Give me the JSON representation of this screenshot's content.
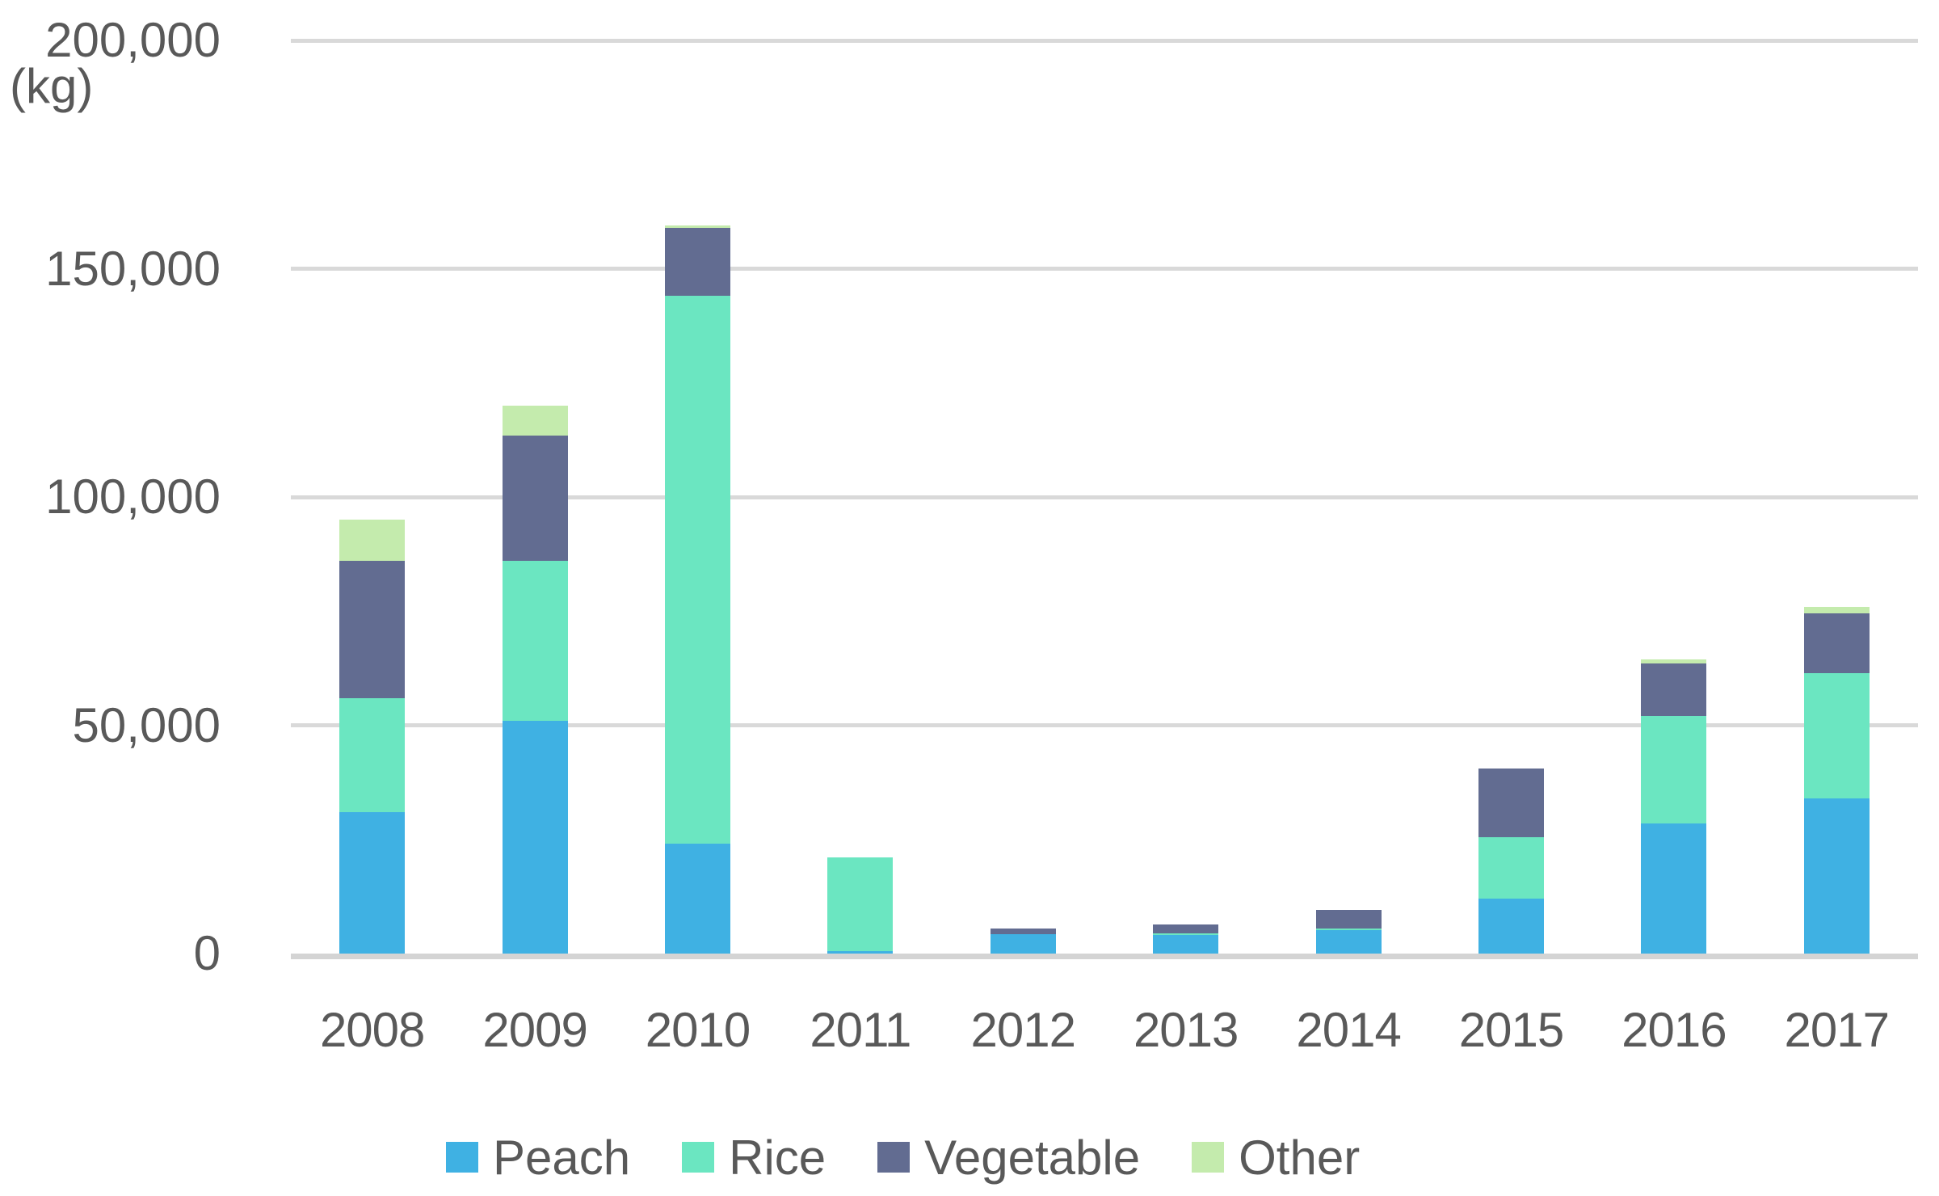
{
  "chart_data": {
    "type": "bar",
    "stacked": true,
    "title": "",
    "unit_label": "(kg)",
    "xlabel": "",
    "ylabel": "(kg)",
    "categories": [
      "2008",
      "2009",
      "2010",
      "2011",
      "2012",
      "2013",
      "2014",
      "2015",
      "2016",
      "2017"
    ],
    "series": [
      {
        "name": "Peach",
        "color": "#3fb1e3",
        "values": [
          31000,
          51000,
          24000,
          500,
          4300,
          4100,
          5100,
          12000,
          28500,
          34000
        ]
      },
      {
        "name": "Rice",
        "color": "#6be6c1",
        "values": [
          25000,
          35000,
          120000,
          20500,
          0,
          300,
          300,
          13500,
          23500,
          27500
        ]
      },
      {
        "name": "Vegetable",
        "color": "#626c91",
        "values": [
          30000,
          27500,
          15000,
          0,
          1100,
          2000,
          4100,
          15000,
          11500,
          13000
        ]
      },
      {
        "name": "Other",
        "color": "#c4ebad",
        "values": [
          9000,
          6500,
          400,
          0,
          0,
          0,
          0,
          0,
          1000,
          1500
        ]
      }
    ],
    "totals": [
      95000,
      120000,
      159400,
      21000,
      5400,
      6400,
      9500,
      40500,
      64500,
      76000
    ],
    "ylim": [
      0,
      200000
    ],
    "ytick_interval": 50000,
    "yticks": [
      {
        "value": 0,
        "label": "0"
      },
      {
        "value": 50000,
        "label": "50,000"
      },
      {
        "value": 100000,
        "label": "100,000"
      },
      {
        "value": 150000,
        "label": "150,000"
      },
      {
        "value": 200000,
        "label": "200,000"
      }
    ],
    "grid": "horizontal",
    "legend_position": "bottom",
    "colors": {
      "gridline": "#d9d9d9",
      "baseline": "#d4d4d4",
      "text": "#595959",
      "background": "#ffffff"
    }
  }
}
